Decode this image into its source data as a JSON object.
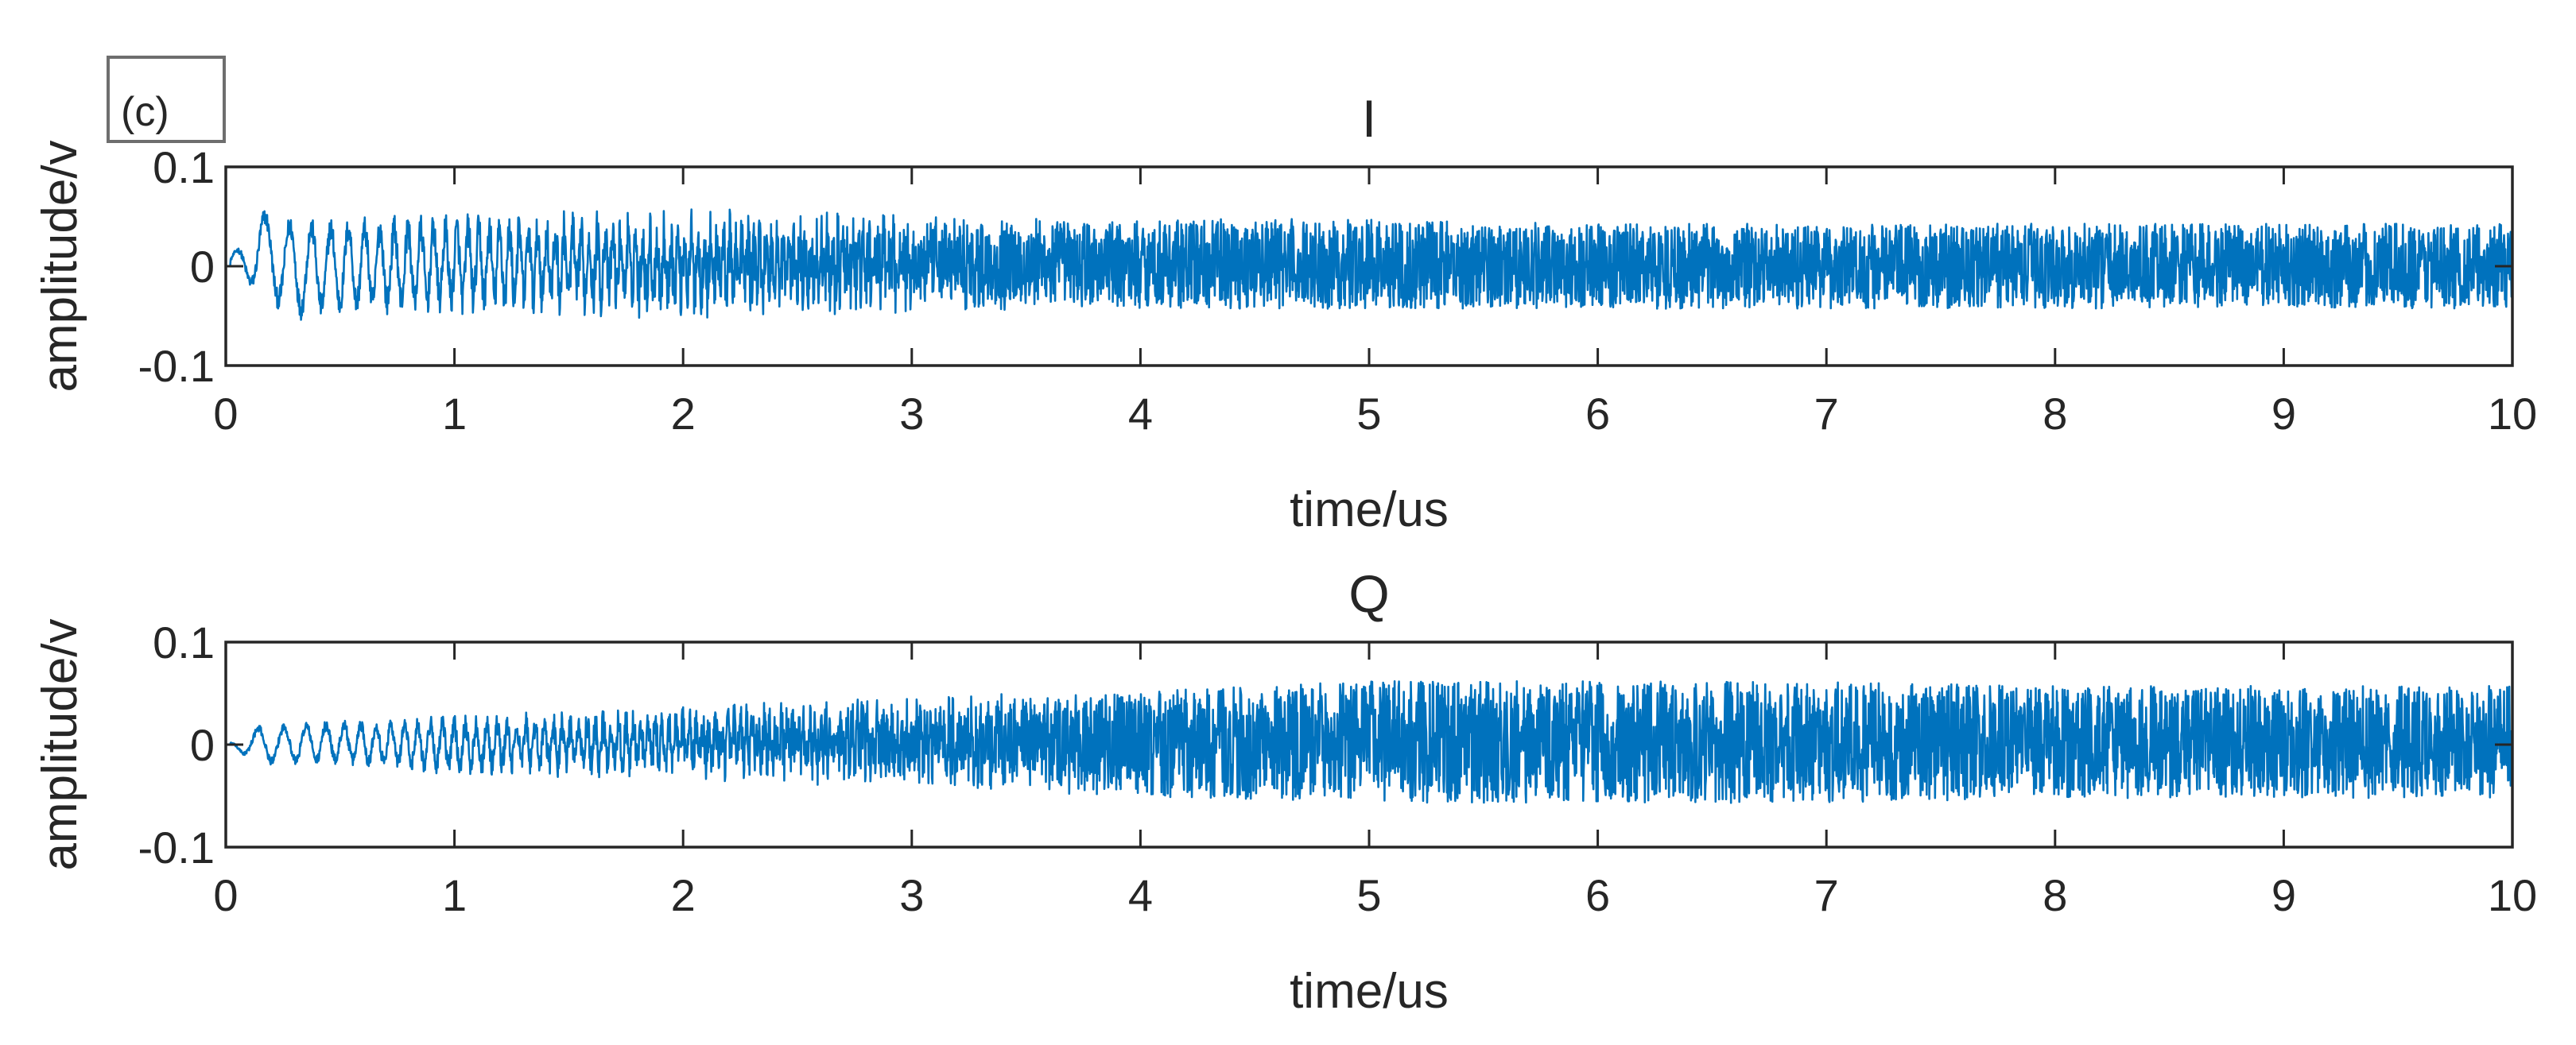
{
  "panel_label": "(c)",
  "color_signal": "#0072BD",
  "chart_data": [
    {
      "type": "line",
      "title": "I",
      "xlabel": "time/us",
      "ylabel": "amplitude/v",
      "xlim": [
        0,
        10
      ],
      "ylim": [
        -0.1,
        0.1
      ],
      "xticks": [
        0,
        1,
        2,
        3,
        4,
        5,
        6,
        7,
        8,
        9,
        10
      ],
      "yticks": [
        -0.1,
        0,
        0.1
      ],
      "ytick_labels": [
        "-0.1",
        "0",
        "0.1"
      ],
      "grid": false,
      "box": true,
      "series": [
        {
          "color": "#0072BD",
          "description": "chirp-like oscillation with increasing frequency, envelope decaying into noise",
          "envelope": {
            "x": [
              0,
              0.15,
              0.3,
              0.5,
              1,
              2,
              3,
              4,
              5,
              6,
              7,
              8,
              9,
              10
            ],
            "upper": [
              0.0,
              0.06,
              0.05,
              0.05,
              0.055,
              0.06,
              0.055,
              0.05,
              0.05,
              0.045,
              0.045,
              0.045,
              0.045,
              0.045
            ],
            "lower": [
              0.0,
              -0.03,
              -0.055,
              -0.05,
              -0.05,
              -0.055,
              -0.05,
              -0.045,
              -0.045,
              -0.045,
              -0.045,
              -0.045,
              -0.045,
              -0.045
            ]
          }
        }
      ]
    },
    {
      "type": "line",
      "title": "Q",
      "xlabel": "time/us",
      "ylabel": "amplitude/v",
      "xlim": [
        0,
        10
      ],
      "ylim": [
        -0.1,
        0.1
      ],
      "xticks": [
        0,
        1,
        2,
        3,
        4,
        5,
        6,
        7,
        8,
        9,
        10
      ],
      "yticks": [
        -0.1,
        0,
        0.1
      ],
      "ytick_labels": [
        "-0.1",
        "0",
        "0.1"
      ],
      "grid": false,
      "box": true,
      "series": [
        {
          "color": "#0072BD",
          "description": "chirp-like oscillation with increasing frequency, envelope growing into noise",
          "envelope": {
            "x": [
              0,
              0.15,
              0.5,
              1,
              2,
              3,
              4,
              5,
              6,
              7,
              8,
              9,
              10
            ],
            "upper": [
              0.0,
              0.02,
              0.025,
              0.03,
              0.04,
              0.05,
              0.055,
              0.065,
              0.065,
              0.065,
              0.06,
              0.06,
              0.06
            ],
            "lower": [
              0.0,
              -0.02,
              -0.02,
              -0.03,
              -0.035,
              -0.045,
              -0.055,
              -0.06,
              -0.06,
              -0.06,
              -0.055,
              -0.055,
              -0.055
            ]
          }
        }
      ]
    }
  ]
}
